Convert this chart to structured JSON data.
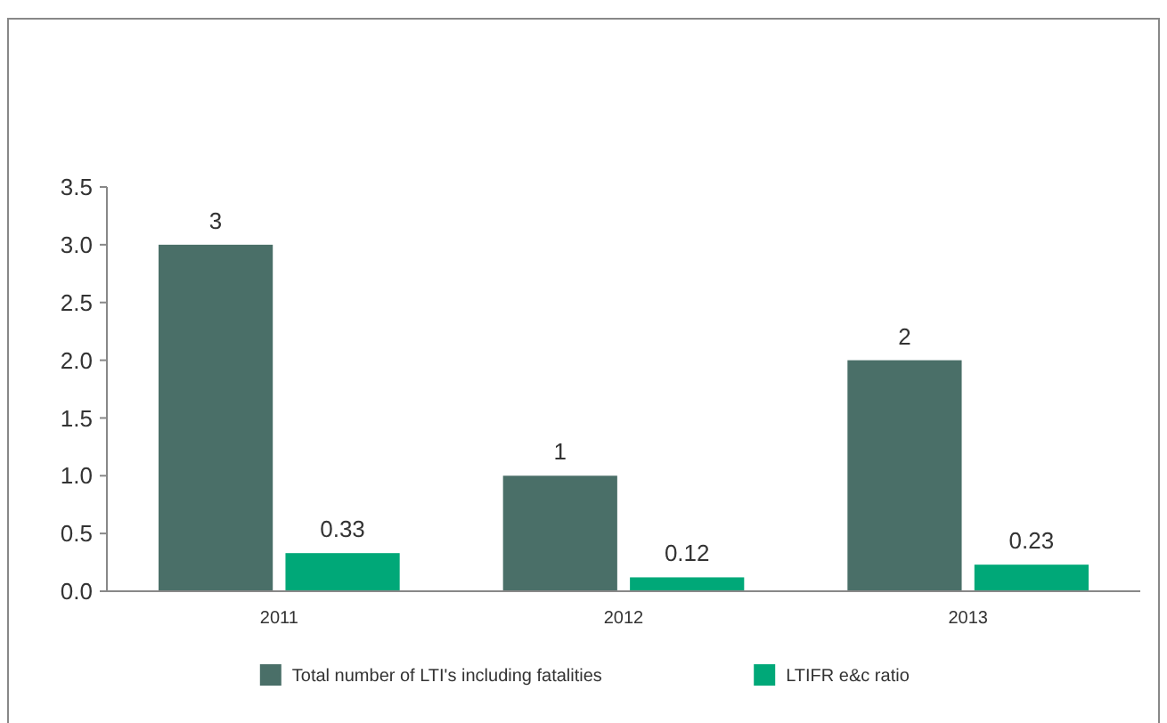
{
  "chart_data": {
    "type": "bar",
    "categories": [
      "2011",
      "2012",
      "2013"
    ],
    "series": [
      {
        "name": "Total number of LTI's including fatalities",
        "color": "#4a6f68",
        "values": [
          3,
          1,
          2
        ]
      },
      {
        "name": "LTIFR e&c ratio",
        "color": "#00a878",
        "values": [
          0.33,
          0.12,
          0.23
        ]
      }
    ],
    "ylim": [
      0,
      3.5
    ],
    "yticks": [
      {
        "value": 0,
        "label": "0.0"
      },
      {
        "value": 0.5,
        "label": "0.5"
      },
      {
        "value": 1,
        "label": "1.0"
      },
      {
        "value": 1.5,
        "label": "1.5"
      },
      {
        "value": 2,
        "label": "2.0"
      },
      {
        "value": 2.5,
        "label": "2.5"
      },
      {
        "value": 3,
        "label": "3.0"
      },
      {
        "value": 3.5,
        "label": "3.5"
      }
    ],
    "data_labels": true,
    "grid": false,
    "legend": "bottom"
  }
}
